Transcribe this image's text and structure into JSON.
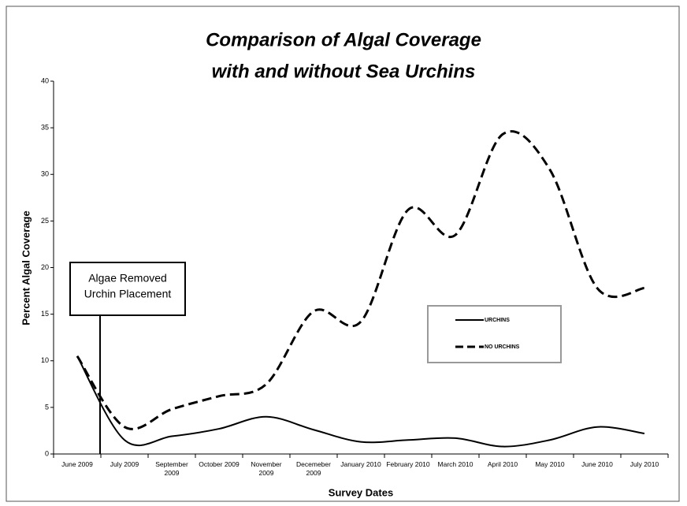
{
  "chart_data": {
    "type": "line",
    "title": [
      "Comparison of Algal Coverage",
      "with and without Sea Urchins"
    ],
    "x_label": "Survey Dates",
    "y_label": "Percent Algal Coverage",
    "categories": [
      "June 2009",
      "July 2009",
      "September 2009",
      "October 2009",
      "November 2009",
      "Decemeber 2009",
      "January 2010",
      "February 2010",
      "March 2010",
      "April 2010",
      "May 2010",
      "June 2010",
      "July 2010"
    ],
    "series": [
      {
        "name": "URCHINS",
        "color": "#000000",
        "dash": "solid",
        "values": [
          10.5,
          1.5,
          1.9,
          2.7,
          4.0,
          2.6,
          1.3,
          1.5,
          1.7,
          0.8,
          1.5,
          2.9,
          2.2
        ]
      },
      {
        "name": "NO URCHINS",
        "color": "#000000",
        "dash": "dashed",
        "values": [
          10.5,
          2.9,
          4.8,
          6.2,
          7.5,
          15.3,
          14.2,
          26.2,
          23.5,
          34.3,
          30.5,
          17.8,
          17.8
        ]
      }
    ],
    "ylim": [
      0,
      40
    ],
    "yticks": [
      0,
      5,
      10,
      15,
      20,
      25,
      30,
      35,
      40
    ],
    "grid": false,
    "smooth": true,
    "annotation": [
      "Algae Removed",
      "Urchin Placement"
    ]
  }
}
